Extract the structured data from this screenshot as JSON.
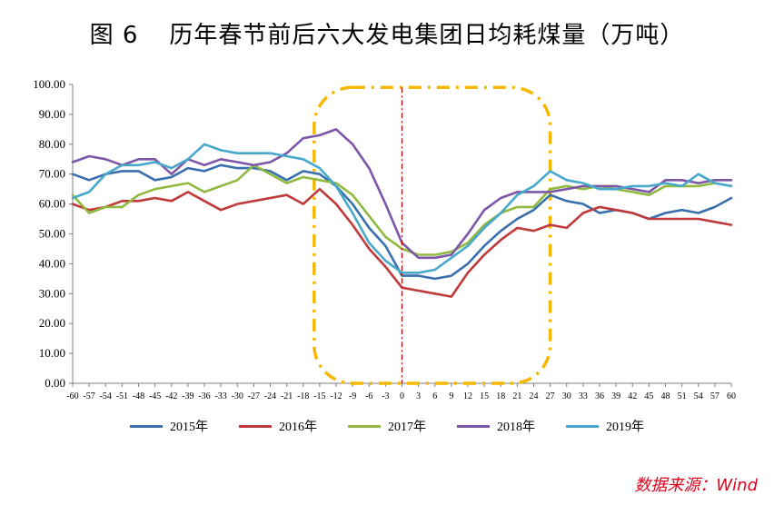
{
  "title": {
    "prefix": "图 6",
    "text": "历年春节前后六大发电集团日均耗煤量（万吨）"
  },
  "source": "数据来源：Wind",
  "chart_data": {
    "type": "line",
    "x_min": -60,
    "x_max": 60,
    "x_ticks": [
      -60,
      -57,
      -54,
      -51,
      -48,
      -45,
      -42,
      -39,
      -36,
      -33,
      -30,
      -27,
      -24,
      -21,
      -18,
      -15,
      -12,
      -9,
      -6,
      -3,
      0,
      3,
      6,
      9,
      12,
      15,
      18,
      21,
      24,
      27,
      30,
      33,
      36,
      39,
      42,
      45,
      48,
      51,
      54,
      57,
      60
    ],
    "ylim": [
      0,
      100
    ],
    "y_ticks": [
      "0.00",
      "10.00",
      "20.00",
      "30.00",
      "40.00",
      "50.00",
      "60.00",
      "70.00",
      "80.00",
      "90.00",
      "100.00"
    ],
    "highlight": {
      "x_start": -16,
      "x_end": 27,
      "y_start": 0,
      "y_end": 99,
      "color": "#f5b800"
    },
    "marker_x": 0,
    "series": [
      {
        "name": "2015年",
        "color": "#3a6fae",
        "points": [
          [
            -60,
            70
          ],
          [
            -57,
            68
          ],
          [
            -54,
            70
          ],
          [
            -51,
            71
          ],
          [
            -48,
            71
          ],
          [
            -45,
            68
          ],
          [
            -42,
            69
          ],
          [
            -39,
            72
          ],
          [
            -36,
            71
          ],
          [
            -33,
            73
          ],
          [
            -30,
            72
          ],
          [
            -27,
            72
          ],
          [
            -24,
            71
          ],
          [
            -21,
            68
          ],
          [
            -18,
            71
          ],
          [
            -15,
            70
          ],
          [
            -12,
            66
          ],
          [
            -9,
            60
          ],
          [
            -6,
            52
          ],
          [
            -3,
            46
          ],
          [
            0,
            36
          ],
          [
            3,
            36
          ],
          [
            6,
            35
          ],
          [
            9,
            36
          ],
          [
            12,
            40
          ],
          [
            15,
            46
          ],
          [
            18,
            51
          ],
          [
            21,
            55
          ],
          [
            24,
            58
          ],
          [
            27,
            63
          ],
          [
            30,
            61
          ],
          [
            33,
            60
          ],
          [
            36,
            57
          ],
          [
            39,
            58
          ],
          [
            42,
            57
          ],
          [
            45,
            55
          ],
          [
            48,
            57
          ],
          [
            51,
            58
          ],
          [
            54,
            57
          ],
          [
            57,
            59
          ],
          [
            60,
            62
          ]
        ]
      },
      {
        "name": "2016年",
        "color": "#c0393b",
        "points": [
          [
            -60,
            60
          ],
          [
            -57,
            58
          ],
          [
            -54,
            59
          ],
          [
            -51,
            61
          ],
          [
            -48,
            61
          ],
          [
            -45,
            62
          ],
          [
            -42,
            61
          ],
          [
            -39,
            64
          ],
          [
            -36,
            61
          ],
          [
            -33,
            58
          ],
          [
            -30,
            60
          ],
          [
            -27,
            61
          ],
          [
            -24,
            62
          ],
          [
            -21,
            63
          ],
          [
            -18,
            60
          ],
          [
            -15,
            65
          ],
          [
            -12,
            60
          ],
          [
            -9,
            53
          ],
          [
            -6,
            45
          ],
          [
            -3,
            39
          ],
          [
            0,
            32
          ],
          [
            3,
            31
          ],
          [
            6,
            30
          ],
          [
            9,
            29
          ],
          [
            12,
            37
          ],
          [
            15,
            43
          ],
          [
            18,
            48
          ],
          [
            21,
            52
          ],
          [
            24,
            51
          ],
          [
            27,
            53
          ],
          [
            30,
            52
          ],
          [
            33,
            57
          ],
          [
            36,
            59
          ],
          [
            39,
            58
          ],
          [
            42,
            57
          ],
          [
            45,
            55
          ],
          [
            48,
            55
          ],
          [
            51,
            55
          ],
          [
            54,
            55
          ],
          [
            57,
            54
          ],
          [
            60,
            53
          ]
        ]
      },
      {
        "name": "2017年",
        "color": "#8fb93f",
        "points": [
          [
            -60,
            63
          ],
          [
            -57,
            57
          ],
          [
            -54,
            59
          ],
          [
            -51,
            59
          ],
          [
            -48,
            63
          ],
          [
            -45,
            65
          ],
          [
            -42,
            66
          ],
          [
            -39,
            67
          ],
          [
            -36,
            64
          ],
          [
            -33,
            66
          ],
          [
            -30,
            68
          ],
          [
            -27,
            73
          ],
          [
            -24,
            70
          ],
          [
            -21,
            67
          ],
          [
            -18,
            69
          ],
          [
            -15,
            68
          ],
          [
            -12,
            67
          ],
          [
            -9,
            63
          ],
          [
            -6,
            56
          ],
          [
            -3,
            49
          ],
          [
            0,
            45
          ],
          [
            3,
            43
          ],
          [
            6,
            43
          ],
          [
            9,
            44
          ],
          [
            12,
            47
          ],
          [
            15,
            53
          ],
          [
            18,
            57
          ],
          [
            21,
            59
          ],
          [
            24,
            59
          ],
          [
            27,
            65
          ],
          [
            30,
            66
          ],
          [
            33,
            65
          ],
          [
            36,
            66
          ],
          [
            39,
            65
          ],
          [
            42,
            64
          ],
          [
            45,
            63
          ],
          [
            48,
            66
          ],
          [
            51,
            66
          ],
          [
            54,
            66
          ],
          [
            57,
            67
          ],
          [
            60,
            66
          ]
        ]
      },
      {
        "name": "2018年",
        "color": "#7d56a8",
        "points": [
          [
            -60,
            74
          ],
          [
            -57,
            76
          ],
          [
            -54,
            75
          ],
          [
            -51,
            73
          ],
          [
            -48,
            75
          ],
          [
            -45,
            75
          ],
          [
            -42,
            70
          ],
          [
            -39,
            75
          ],
          [
            -36,
            73
          ],
          [
            -33,
            75
          ],
          [
            -30,
            74
          ],
          [
            -27,
            73
          ],
          [
            -24,
            74
          ],
          [
            -21,
            77
          ],
          [
            -18,
            82
          ],
          [
            -15,
            83
          ],
          [
            -12,
            85
          ],
          [
            -9,
            80
          ],
          [
            -6,
            72
          ],
          [
            -3,
            60
          ],
          [
            0,
            47
          ],
          [
            3,
            42
          ],
          [
            6,
            42
          ],
          [
            9,
            43
          ],
          [
            12,
            50
          ],
          [
            15,
            58
          ],
          [
            18,
            62
          ],
          [
            21,
            64
          ],
          [
            24,
            64
          ],
          [
            27,
            64
          ],
          [
            30,
            65
          ],
          [
            33,
            66
          ],
          [
            36,
            66
          ],
          [
            39,
            66
          ],
          [
            42,
            65
          ],
          [
            45,
            64
          ],
          [
            48,
            68
          ],
          [
            51,
            68
          ],
          [
            54,
            67
          ],
          [
            57,
            68
          ],
          [
            60,
            68
          ]
        ]
      },
      {
        "name": "2019年",
        "color": "#48a8cc",
        "points": [
          [
            -60,
            62
          ],
          [
            -57,
            64
          ],
          [
            -54,
            70
          ],
          [
            -51,
            73
          ],
          [
            -48,
            73
          ],
          [
            -45,
            74
          ],
          [
            -42,
            72
          ],
          [
            -39,
            75
          ],
          [
            -36,
            80
          ],
          [
            -33,
            78
          ],
          [
            -30,
            77
          ],
          [
            -27,
            77
          ],
          [
            -24,
            77
          ],
          [
            -21,
            76
          ],
          [
            -18,
            75
          ],
          [
            -15,
            72
          ],
          [
            -12,
            66
          ],
          [
            -9,
            57
          ],
          [
            -6,
            47
          ],
          [
            -3,
            41
          ],
          [
            0,
            37
          ],
          [
            3,
            37
          ],
          [
            6,
            38
          ],
          [
            9,
            42
          ],
          [
            12,
            46
          ],
          [
            15,
            52
          ],
          [
            18,
            57
          ],
          [
            21,
            63
          ],
          [
            24,
            66
          ],
          [
            27,
            71
          ],
          [
            30,
            68
          ],
          [
            33,
            67
          ],
          [
            36,
            65
          ],
          [
            39,
            65
          ],
          [
            42,
            66
          ],
          [
            45,
            66
          ],
          [
            48,
            67
          ],
          [
            51,
            66
          ],
          [
            54,
            70
          ],
          [
            57,
            67
          ],
          [
            60,
            66
          ]
        ]
      }
    ]
  }
}
